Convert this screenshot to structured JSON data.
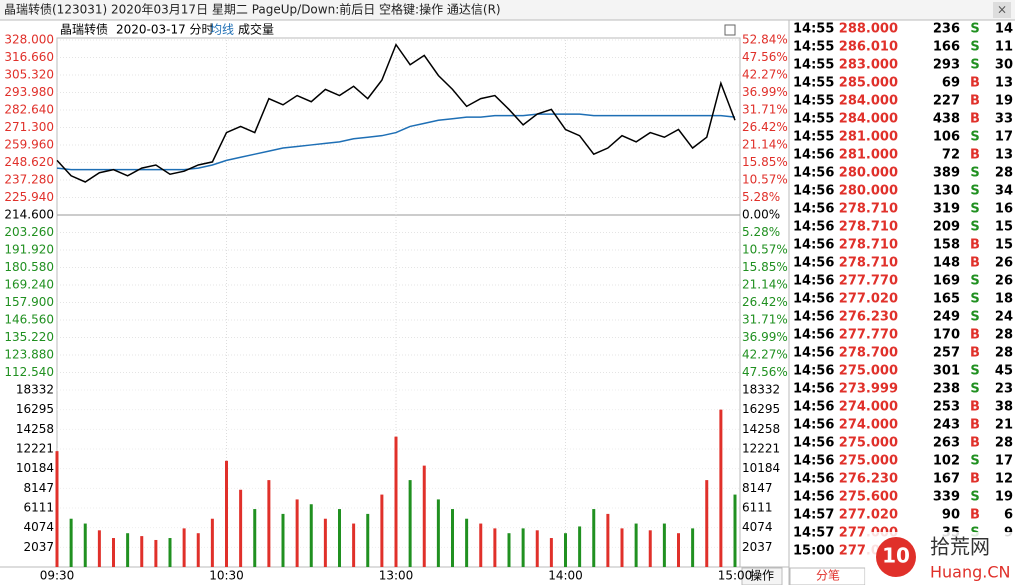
{
  "window": {
    "title": "晶瑞转债(123031) 2020年03月17日 星期二 PageUp/Down:前后日 空格键:操作 通达信(R)"
  },
  "chart_data": [
    {
      "type": "line",
      "subtitle": "2020-03-17 分时",
      "categories": [
        "09:30",
        null,
        null,
        null,
        null,
        null,
        null,
        null,
        null,
        null,
        null,
        null,
        "10:30",
        null,
        null,
        null,
        null,
        null,
        null,
        null,
        null,
        null,
        null,
        null,
        "13:00",
        null,
        null,
        null,
        null,
        null,
        null,
        null,
        null,
        null,
        null,
        null,
        "14:00",
        null,
        null,
        null,
        null,
        null,
        null,
        null,
        null,
        null,
        null,
        null,
        "15:00"
      ],
      "series": [
        {
          "name": "晶瑞转债",
          "color": "#000000",
          "values": [
            250,
            240,
            236,
            242,
            244,
            240,
            245,
            247,
            241,
            243,
            247,
            249,
            268,
            272,
            268,
            290,
            286,
            292,
            288,
            296,
            292,
            298,
            290,
            302,
            325,
            312,
            318,
            305,
            296,
            285,
            290,
            292,
            283,
            273,
            280,
            283,
            270,
            266,
            254,
            258,
            266,
            262,
            268,
            265,
            270,
            258,
            265,
            300,
            276
          ]
        },
        {
          "name": "均线",
          "color": "#1e6fb5",
          "values": [
            245,
            244,
            244,
            244,
            244,
            244,
            244,
            244,
            244,
            244,
            245,
            247,
            250,
            252,
            254,
            256,
            258,
            259,
            260,
            261,
            262,
            264,
            265,
            266,
            268,
            272,
            274,
            276,
            277,
            278,
            278,
            279,
            279,
            279,
            280,
            280,
            280,
            280,
            279,
            279,
            279,
            279,
            279,
            279,
            279,
            279,
            279,
            279,
            278
          ]
        }
      ],
      "ylim": [
        101.2,
        328
      ],
      "yticks": [
        {
          "value": 328,
          "label": "328.000"
        },
        {
          "value": 316.66,
          "label": "316.660"
        },
        {
          "value": 305.32,
          "label": "305.320"
        },
        {
          "value": 293.98,
          "label": "293.980"
        },
        {
          "value": 282.64,
          "label": "282.640"
        },
        {
          "value": 271.3,
          "label": "271.300"
        },
        {
          "value": 259.96,
          "label": "259.960"
        },
        {
          "value": 248.62,
          "label": "248.620"
        },
        {
          "value": 237.28,
          "label": "237.280"
        },
        {
          "value": 225.94,
          "label": "225.940"
        },
        {
          "value": 214.6,
          "label": "214.600"
        },
        {
          "value": 203.26,
          "label": "203.260"
        },
        {
          "value": 191.92,
          "label": "191.920"
        },
        {
          "value": 180.58,
          "label": "180.580"
        },
        {
          "value": 169.24,
          "label": "169.240"
        },
        {
          "value": 157.9,
          "label": "157.900"
        },
        {
          "value": 146.56,
          "label": "146.560"
        },
        {
          "value": 135.22,
          "label": "135.220"
        },
        {
          "value": 123.88,
          "label": "123.880"
        },
        {
          "value": 112.54,
          "label": "112.540"
        }
      ],
      "y2lim": [
        -52.84,
        52.84
      ],
      "y2ticks": [
        {
          "value": 52.84,
          "label": "52.84%"
        },
        {
          "value": 47.56,
          "label": "47.56%"
        },
        {
          "value": 42.27,
          "label": "42.27%"
        },
        {
          "value": 36.99,
          "label": "36.99%"
        },
        {
          "value": 31.71,
          "label": "31.71%"
        },
        {
          "value": 26.42,
          "label": "26.42%"
        },
        {
          "value": 21.14,
          "label": "21.14%"
        },
        {
          "value": 15.85,
          "label": "15.85%"
        },
        {
          "value": 10.57,
          "label": "10.57%"
        },
        {
          "value": 5.28,
          "label": "5.28%"
        },
        {
          "value": 0,
          "label": "0.00%"
        },
        {
          "value": -5.28,
          "label": "5.28%"
        },
        {
          "value": -10.57,
          "label": "10.57%"
        },
        {
          "value": -15.85,
          "label": "15.85%"
        },
        {
          "value": -21.14,
          "label": "21.14%"
        },
        {
          "value": -26.42,
          "label": "26.42%"
        },
        {
          "value": -31.71,
          "label": "31.71%"
        },
        {
          "value": -36.99,
          "label": "36.99%"
        },
        {
          "value": -42.27,
          "label": "42.27%"
        },
        {
          "value": -47.56,
          "label": "47.56%"
        }
      ],
      "up_color": "#e0302a",
      "down_color": "#209020",
      "grid": true
    },
    {
      "type": "bar",
      "title": "成交量",
      "values": [
        12000,
        5000,
        4500,
        3800,
        3000,
        3500,
        3200,
        2800,
        3000,
        4000,
        3500,
        5000,
        11000,
        8000,
        6000,
        9000,
        5500,
        7000,
        6500,
        5000,
        6000,
        4500,
        5500,
        7500,
        13500,
        9000,
        10500,
        7000,
        6000,
        5000,
        4500,
        4000,
        3500,
        4000,
        3800,
        3000,
        3500,
        4200,
        6000,
        5500,
        4000,
        4500,
        3800,
        4500,
        3500,
        4000,
        9000,
        16300,
        7500
      ],
      "ylim": [
        0,
        18332
      ],
      "yticks": [
        18332,
        16295,
        14258,
        12221,
        10184,
        8147,
        6111,
        4074,
        2037
      ],
      "up_color": "#e0302a",
      "down_color": "#209020"
    }
  ],
  "trades": {
    "rows": [
      [
        "14:55",
        "288.000",
        "236",
        "S",
        "14"
      ],
      [
        "14:55",
        "286.010",
        "166",
        "S",
        "11"
      ],
      [
        "14:55",
        "283.000",
        "293",
        "S",
        "30"
      ],
      [
        "14:55",
        "285.000",
        "69",
        "B",
        "13"
      ],
      [
        "14:55",
        "284.000",
        "227",
        "B",
        "19"
      ],
      [
        "14:55",
        "284.000",
        "438",
        "B",
        "33"
      ],
      [
        "14:55",
        "281.000",
        "106",
        "S",
        "17"
      ],
      [
        "14:56",
        "281.000",
        "72",
        "B",
        "13"
      ],
      [
        "14:56",
        "280.000",
        "389",
        "S",
        "28"
      ],
      [
        "14:56",
        "280.000",
        "130",
        "S",
        "34"
      ],
      [
        "14:56",
        "278.710",
        "319",
        "S",
        "16"
      ],
      [
        "14:56",
        "278.710",
        "209",
        "S",
        "15"
      ],
      [
        "14:56",
        "278.710",
        "158",
        "B",
        "15"
      ],
      [
        "14:56",
        "278.710",
        "148",
        "B",
        "26"
      ],
      [
        "14:56",
        "277.770",
        "169",
        "S",
        "26"
      ],
      [
        "14:56",
        "277.020",
        "165",
        "S",
        "18"
      ],
      [
        "14:56",
        "276.230",
        "249",
        "S",
        "24"
      ],
      [
        "14:56",
        "277.770",
        "170",
        "B",
        "28"
      ],
      [
        "14:56",
        "278.700",
        "257",
        "B",
        "28"
      ],
      [
        "14:56",
        "275.000",
        "301",
        "S",
        "45"
      ],
      [
        "14:56",
        "273.999",
        "238",
        "S",
        "23"
      ],
      [
        "14:56",
        "274.000",
        "253",
        "B",
        "38"
      ],
      [
        "14:56",
        "274.000",
        "243",
        "B",
        "21"
      ],
      [
        "14:56",
        "275.000",
        "263",
        "B",
        "28"
      ],
      [
        "14:56",
        "275.000",
        "102",
        "S",
        "17"
      ],
      [
        "14:56",
        "276.230",
        "167",
        "B",
        "12"
      ],
      [
        "14:56",
        "275.600",
        "339",
        "S",
        "19"
      ],
      [
        "14:57",
        "277.020",
        "90",
        "B",
        "6"
      ],
      [
        "14:57",
        "277.000",
        "35",
        "S",
        "9"
      ],
      [
        "15:00",
        "277.000"
      ]
    ]
  },
  "footer": {
    "left_tab": "操作",
    "tab": "分笔"
  },
  "watermark": {
    "logo": "10",
    "name": "拾荒网",
    "site": "Huang.CN"
  }
}
